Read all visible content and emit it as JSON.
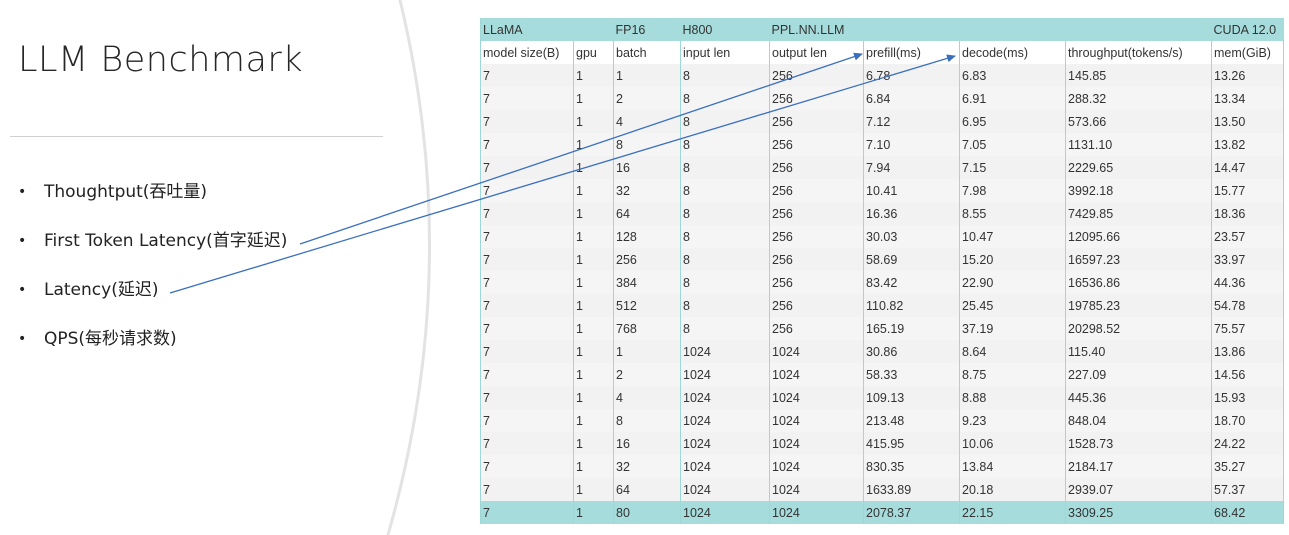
{
  "slide": {
    "title": "LLM Benchmark",
    "bullets": [
      "Thoughtput(吞吐量)",
      "First Token Latency(首字延迟)",
      "Latency(延迟)",
      "QPS(每秒请求数)"
    ],
    "bullet_glyph": "•"
  },
  "table": {
    "top_header": {
      "model": "LLaMA",
      "precision": "FP16",
      "hardware": "H800",
      "framework": "PPL.NN.LLM",
      "cuda": "CUDA 12.0"
    },
    "columns": [
      "model size(B)",
      "gpu",
      "batch",
      "input len",
      "output len",
      "prefill(ms)",
      "decode(ms)",
      "throughput(tokens/s)",
      "mem(GiB)"
    ],
    "rows": [
      [
        "7",
        "1",
        "1",
        "8",
        "256",
        "6.78",
        "6.83",
        "145.85",
        "13.26"
      ],
      [
        "7",
        "1",
        "2",
        "8",
        "256",
        "6.84",
        "6.91",
        "288.32",
        "13.34"
      ],
      [
        "7",
        "1",
        "4",
        "8",
        "256",
        "7.12",
        "6.95",
        "573.66",
        "13.50"
      ],
      [
        "7",
        "1",
        "8",
        "8",
        "256",
        "7.10",
        "7.05",
        "1131.10",
        "13.82"
      ],
      [
        "7",
        "1",
        "16",
        "8",
        "256",
        "7.94",
        "7.15",
        "2229.65",
        "14.47"
      ],
      [
        "7",
        "1",
        "32",
        "8",
        "256",
        "10.41",
        "7.98",
        "3992.18",
        "15.77"
      ],
      [
        "7",
        "1",
        "64",
        "8",
        "256",
        "16.36",
        "8.55",
        "7429.85",
        "18.36"
      ],
      [
        "7",
        "1",
        "128",
        "8",
        "256",
        "30.03",
        "10.47",
        "12095.66",
        "23.57"
      ],
      [
        "7",
        "1",
        "256",
        "8",
        "256",
        "58.69",
        "15.20",
        "16597.23",
        "33.97"
      ],
      [
        "7",
        "1",
        "384",
        "8",
        "256",
        "83.42",
        "22.90",
        "16536.86",
        "44.36"
      ],
      [
        "7",
        "1",
        "512",
        "8",
        "256",
        "110.82",
        "25.45",
        "19785.23",
        "54.78"
      ],
      [
        "7",
        "1",
        "768",
        "8",
        "256",
        "165.19",
        "37.19",
        "20298.52",
        "75.57"
      ],
      [
        "7",
        "1",
        "1",
        "1024",
        "1024",
        "30.86",
        "8.64",
        "115.40",
        "13.86"
      ],
      [
        "7",
        "1",
        "2",
        "1024",
        "1024",
        "58.33",
        "8.75",
        "227.09",
        "14.56"
      ],
      [
        "7",
        "1",
        "4",
        "1024",
        "1024",
        "109.13",
        "8.88",
        "445.36",
        "15.93"
      ],
      [
        "7",
        "1",
        "8",
        "1024",
        "1024",
        "213.48",
        "9.23",
        "848.04",
        "18.70"
      ],
      [
        "7",
        "1",
        "16",
        "1024",
        "1024",
        "415.95",
        "10.06",
        "1528.73",
        "24.22"
      ],
      [
        "7",
        "1",
        "32",
        "1024",
        "1024",
        "830.35",
        "13.84",
        "2184.17",
        "35.27"
      ],
      [
        "7",
        "1",
        "64",
        "1024",
        "1024",
        "1633.89",
        "20.18",
        "2939.07",
        "57.37"
      ]
    ],
    "highlight_row": [
      "7",
      "1",
      "80",
      "1024",
      "1024",
      "2078.37",
      "22.15",
      "3309.25",
      "68.42"
    ]
  },
  "colors": {
    "header_bg": "#a6dcdc",
    "arrow": "#3a6fc0",
    "circle_edge": "#e3e3e3"
  }
}
